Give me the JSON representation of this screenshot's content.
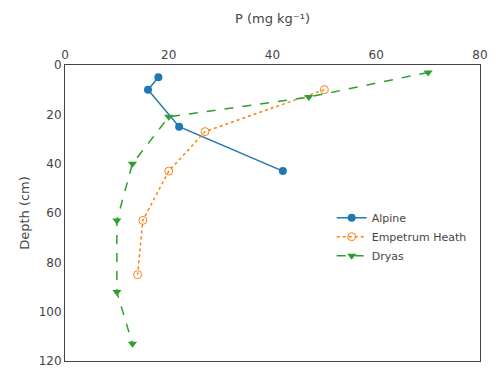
{
  "chart_data": {
    "type": "line",
    "xlabel": "P (mg kg⁻¹)",
    "ylabel": "Depth (cm)",
    "series": [
      {
        "name": "Alpine",
        "x": [
          18,
          16,
          22,
          42
        ],
        "values": [
          5,
          10,
          25,
          43
        ],
        "line_style": "solid",
        "marker": "circle"
      },
      {
        "name": "Empetrum Heath",
        "x": [
          50,
          27,
          20,
          15,
          14
        ],
        "values": [
          10,
          27,
          43,
          63,
          85
        ],
        "line_style": "dotted",
        "marker": "circle-open"
      },
      {
        "name": "Dryas",
        "x": [
          70,
          47,
          20,
          13,
          10,
          10,
          13
        ],
        "values": [
          3,
          13,
          21,
          40,
          63,
          92,
          113
        ],
        "line_style": "dashed",
        "marker": "triangle-down"
      }
    ],
    "xlim": [
      0,
      80
    ],
    "ylim": [
      120,
      0
    ],
    "xticks": [
      0,
      20,
      40,
      60,
      80
    ],
    "yticks": [
      0,
      20,
      40,
      60,
      80,
      100,
      120
    ],
    "grid": false,
    "legend": "right"
  }
}
